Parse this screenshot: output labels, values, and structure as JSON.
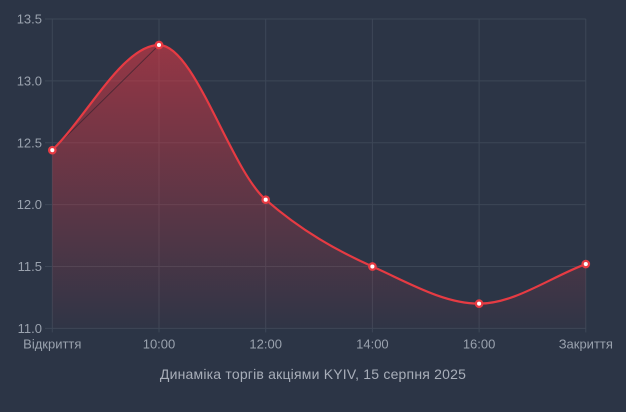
{
  "title": "Динаміка торгів акціями KYIV, 15 серпня 2025",
  "chart_data": {
    "type": "area",
    "title": "Динаміка торгів акціями KYIV, 15 серпня 2025",
    "series_name": "KYIV",
    "categories": [
      "Відкриття",
      "10:00",
      "12:00",
      "14:00",
      "16:00",
      "Закриття"
    ],
    "values": [
      12.44,
      13.29,
      12.04,
      11.5,
      11.2,
      11.52
    ],
    "xlabel": "",
    "ylabel": "",
    "ylim": [
      11.0,
      13.5
    ],
    "yticks": [
      11.0,
      11.5,
      12.0,
      12.5,
      13.0,
      13.5
    ],
    "ytick_format_decimals": 1,
    "grid": true,
    "legend": "none",
    "marker": "circle-white-core",
    "colors": {
      "background": "#2c3546",
      "grid": "#3d4757",
      "line": "#e63b43",
      "fill_top": "rgba(230,56,68,0.62)",
      "fill_bottom": "rgba(230,56,68,0.02)",
      "marker_core": "#ffffff",
      "tick_label": "#9aa2ae",
      "title": "#a8aeb9",
      "chord_artifact": "rgba(24,28,40,0.5)"
    }
  }
}
